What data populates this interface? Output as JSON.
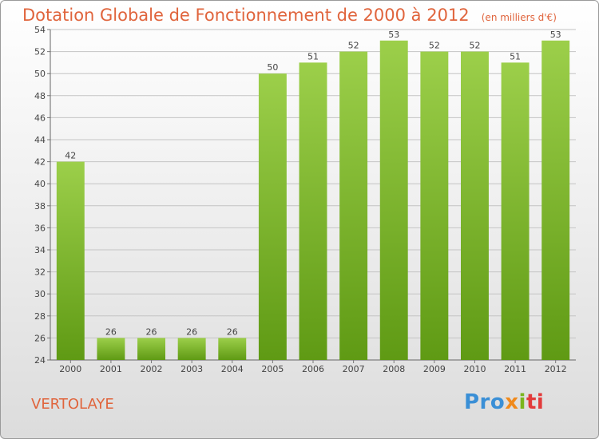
{
  "header": {
    "title": "Dotation Globale de Fonctionnement de 2000 à 2012",
    "unit": "(en milliers d'€)"
  },
  "footer": {
    "commune": "VERTOLAYE",
    "logo": [
      "Pro",
      "x",
      "i",
      "ti"
    ]
  },
  "colors": {
    "title": "#e0643c",
    "bar_top": "#9ccf4a",
    "bar_bottom": "#5f9a14"
  },
  "chart_data": {
    "type": "bar",
    "title": "Dotation Globale de Fonctionnement de 2000 à 2012",
    "subtitle": "(en milliers d'€)",
    "categories": [
      "2000",
      "2001",
      "2002",
      "2003",
      "2004",
      "2005",
      "2006",
      "2007",
      "2008",
      "2009",
      "2010",
      "2011",
      "2012"
    ],
    "values": [
      42,
      26,
      26,
      26,
      26,
      50,
      51,
      52,
      53,
      52,
      52,
      51,
      53
    ],
    "ylim": [
      24,
      54
    ],
    "yticks": [
      24,
      26,
      28,
      30,
      32,
      34,
      36,
      38,
      40,
      42,
      44,
      46,
      48,
      50,
      52,
      54
    ],
    "grid": true,
    "xlabel": "",
    "ylabel": ""
  }
}
